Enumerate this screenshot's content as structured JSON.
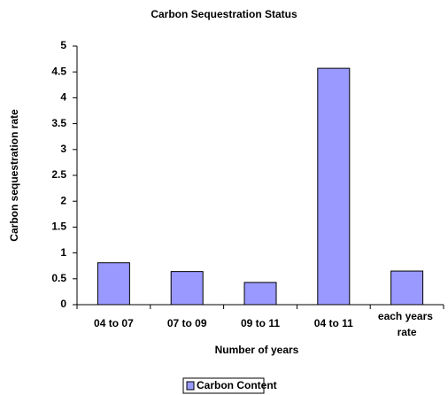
{
  "chart_data": {
    "type": "bar",
    "title": "Carbon Sequestration Status",
    "x_label": "Number of years",
    "y_label": "Carbon sequestration rate",
    "categories": [
      "04 to 07",
      "07 to 09",
      "09 to 11",
      "04 to 11",
      "each years rate"
    ],
    "series": [
      {
        "name": "Carbon Content",
        "color": "#9999ff",
        "values": [
          0.81,
          0.64,
          0.43,
          4.57,
          0.65
        ]
      }
    ],
    "ylim": [
      0,
      5
    ],
    "yticks": [
      0,
      0.5,
      1,
      1.5,
      2,
      2.5,
      3,
      3.5,
      4,
      4.5,
      5
    ],
    "grid": false,
    "legend": "bottom"
  }
}
